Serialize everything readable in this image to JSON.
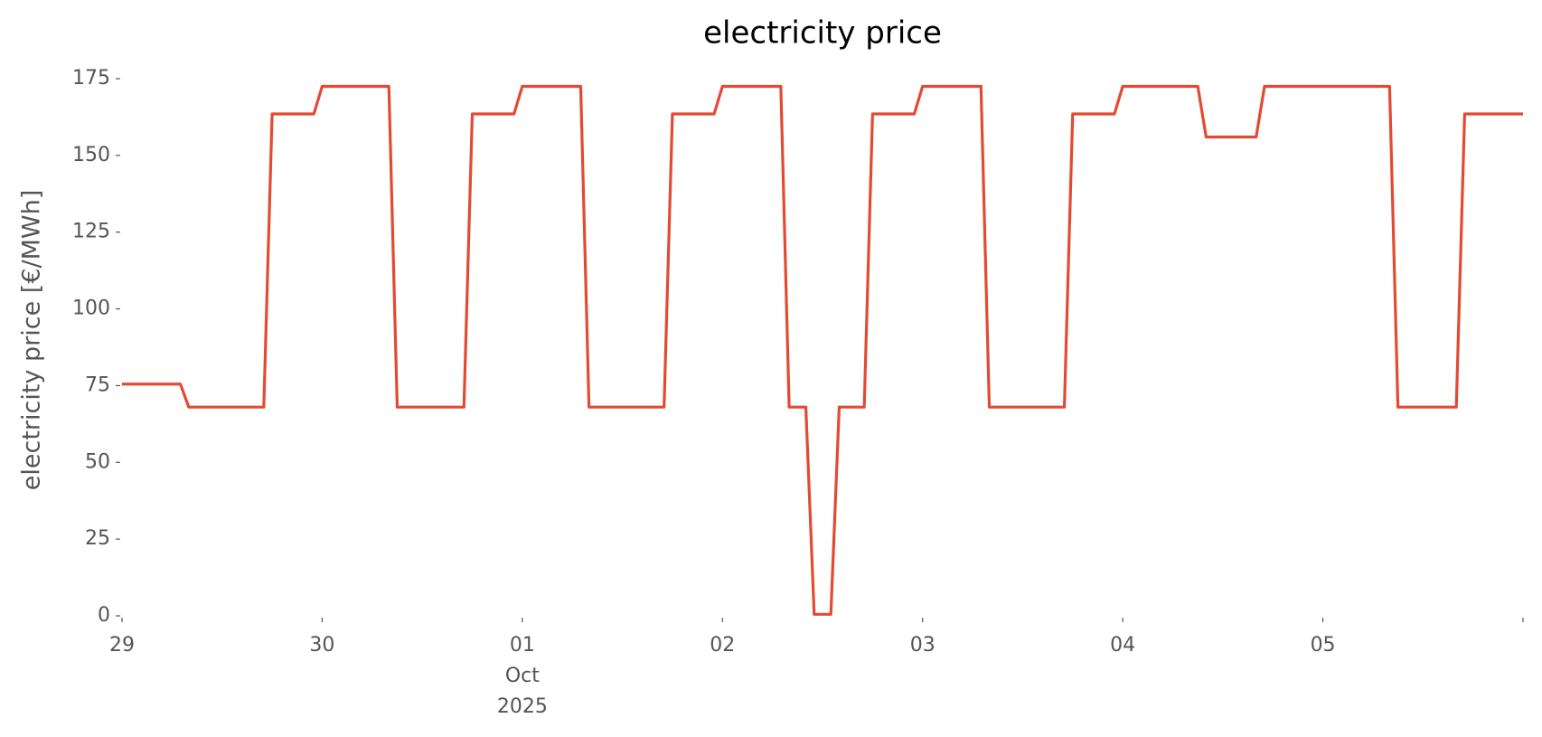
{
  "chart_data": {
    "type": "line",
    "title": "electricity price",
    "ylabel": "electricity price [€/MWh]",
    "x": [
      "2025-09-29T00:00",
      "2025-09-29T07:00",
      "2025-09-29T08:00",
      "2025-09-29T17:00",
      "2025-09-29T18:00",
      "2025-09-29T23:00",
      "2025-09-30T00:00",
      "2025-09-30T08:00",
      "2025-09-30T09:00",
      "2025-09-30T17:00",
      "2025-09-30T18:00",
      "2025-09-30T23:00",
      "2025-10-01T00:00",
      "2025-10-01T07:00",
      "2025-10-01T08:00",
      "2025-10-01T17:00",
      "2025-10-01T18:00",
      "2025-10-01T23:00",
      "2025-10-02T00:00",
      "2025-10-02T07:00",
      "2025-10-02T08:00",
      "2025-10-02T10:00",
      "2025-10-02T11:00",
      "2025-10-02T13:00",
      "2025-10-02T14:00",
      "2025-10-02T17:00",
      "2025-10-02T18:00",
      "2025-10-02T23:00",
      "2025-10-03T00:00",
      "2025-10-03T07:00",
      "2025-10-03T08:00",
      "2025-10-03T17:00",
      "2025-10-03T18:00",
      "2025-10-03T23:00",
      "2025-10-04T00:00",
      "2025-10-04T09:00",
      "2025-10-04T10:00",
      "2025-10-04T16:00",
      "2025-10-04T17:00",
      "2025-10-05T08:00",
      "2025-10-05T09:00",
      "2025-10-05T16:00",
      "2025-10-05T17:00",
      "2025-10-06T00:00"
    ],
    "series": [
      {
        "name": "electricity price",
        "color": "#E24A33",
        "values": [
          75.5,
          75.5,
          68,
          68,
          163.5,
          163.5,
          172.5,
          172.5,
          68,
          68,
          163.5,
          163.5,
          172.5,
          172.5,
          68,
          68,
          163.5,
          163.5,
          172.5,
          172.5,
          68,
          68,
          0.5,
          0.5,
          68,
          68,
          163.5,
          163.5,
          172.5,
          172.5,
          68,
          68,
          163.5,
          163.5,
          172.5,
          172.5,
          156,
          156,
          172.5,
          172.5,
          68,
          68,
          163.5,
          163.5
        ]
      }
    ],
    "xlim": [
      "2025-09-29T00:00",
      "2025-10-06T00:00"
    ],
    "xticks": [
      {
        "value": "2025-09-29T00:00",
        "label": [
          "29"
        ]
      },
      {
        "value": "2025-09-30T00:00",
        "label": [
          "30"
        ]
      },
      {
        "value": "2025-10-01T00:00",
        "label": [
          "01",
          "Oct",
          "2025"
        ]
      },
      {
        "value": "2025-10-02T00:00",
        "label": [
          "02"
        ]
      },
      {
        "value": "2025-10-03T00:00",
        "label": [
          "03"
        ]
      },
      {
        "value": "2025-10-04T00:00",
        "label": [
          "04"
        ]
      },
      {
        "value": "2025-10-05T00:00",
        "label": [
          "05"
        ]
      },
      {
        "value": "2025-10-06T00:00"
      }
    ],
    "ylim": [
      0,
      175
    ],
    "yticks": [
      0,
      25,
      50,
      75,
      100,
      125,
      150,
      175
    ],
    "grid": false
  }
}
